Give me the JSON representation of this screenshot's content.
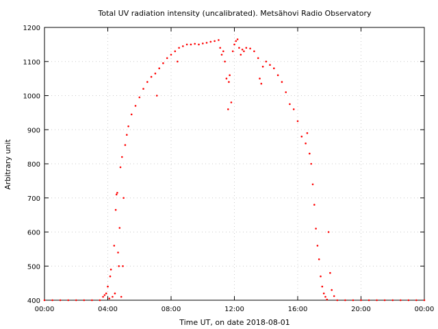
{
  "chart_data": {
    "type": "scatter",
    "title": "Total UV radiation intensity (uncalibrated). Metsähovi Radio Observatory",
    "xlabel": "Time UT, on date 2018-08-01",
    "ylabel": "Arbitrary unit",
    "xlim": [
      "00:00",
      "24:00"
    ],
    "ylim": [
      400,
      1200
    ],
    "x_tick_labels": [
      "00:00",
      "04:00",
      "08:00",
      "12:00",
      "16:00",
      "20:00",
      "00:00"
    ],
    "y_tick_labels": [
      "400",
      "500",
      "600",
      "700",
      "800",
      "900",
      "1000",
      "1100",
      "1200"
    ],
    "grid": true,
    "marker_color": "#ff0000",
    "x_unit": "hours UT",
    "series": [
      {
        "x": [
          0,
          0.5,
          1,
          1.5,
          2,
          2.5,
          3,
          3.5,
          3.7,
          3.8,
          3.9,
          4.0,
          4.1,
          4.15,
          4.2,
          4.3,
          4.4,
          4.45,
          4.5,
          4.55,
          4.6,
          4.65,
          4.7,
          4.75,
          4.8,
          4.85,
          4.9,
          4.95,
          5.0,
          5.1,
          5.2,
          5.3,
          5.5,
          5.75,
          6.0,
          6.25,
          6.5,
          6.75,
          7.0,
          7.1,
          7.25,
          7.5,
          7.75,
          8.0,
          8.25,
          8.4,
          8.5,
          8.75,
          9.0,
          9.25,
          9.5,
          9.75,
          10.0,
          10.25,
          10.5,
          10.75,
          11.0,
          11.1,
          11.2,
          11.3,
          11.4,
          11.5,
          11.6,
          11.65,
          11.7,
          11.8,
          11.9,
          12.0,
          12.1,
          12.2,
          12.3,
          12.4,
          12.5,
          12.6,
          12.75,
          13.0,
          13.25,
          13.5,
          13.6,
          13.7,
          13.8,
          14.0,
          14.25,
          14.5,
          14.75,
          15.0,
          15.25,
          15.5,
          15.75,
          16.0,
          16.25,
          16.5,
          16.6,
          16.75,
          16.85,
          16.95,
          17.05,
          17.15,
          17.25,
          17.35,
          17.45,
          17.55,
          17.65,
          17.75,
          17.85,
          17.95,
          18.05,
          18.15,
          18.3,
          18.5,
          19.0,
          19.5,
          20.0,
          20.5,
          21.0,
          21.5,
          22.0,
          22.5,
          23.0,
          23.5,
          24.0
        ],
        "y": [
          400,
          400,
          400,
          400,
          400,
          400,
          400,
          400,
          410,
          415,
          420,
          440,
          405,
          470,
          490,
          410,
          560,
          420,
          665,
          710,
          715,
          540,
          500,
          612,
          790,
          410,
          820,
          500,
          700,
          855,
          885,
          910,
          945,
          970,
          995,
          1020,
          1040,
          1055,
          1065,
          1000,
          1080,
          1095,
          1110,
          1120,
          1130,
          1100,
          1140,
          1145,
          1150,
          1150,
          1152,
          1150,
          1153,
          1155,
          1158,
          1160,
          1163,
          1140,
          1120,
          1130,
          1100,
          1050,
          960,
          1040,
          1060,
          980,
          1130,
          1150,
          1160,
          1165,
          1140,
          1120,
          1135,
          1130,
          1140,
          1138,
          1130,
          1110,
          1050,
          1035,
          1085,
          1100,
          1090,
          1080,
          1060,
          1040,
          1010,
          975,
          960,
          925,
          880,
          860,
          890,
          830,
          800,
          740,
          680,
          610,
          560,
          520,
          470,
          440,
          420,
          410,
          402,
          600,
          480,
          430,
          412,
          400,
          400,
          400,
          400,
          400,
          400,
          400,
          400,
          400,
          400,
          400,
          400
        ]
      }
    ]
  }
}
